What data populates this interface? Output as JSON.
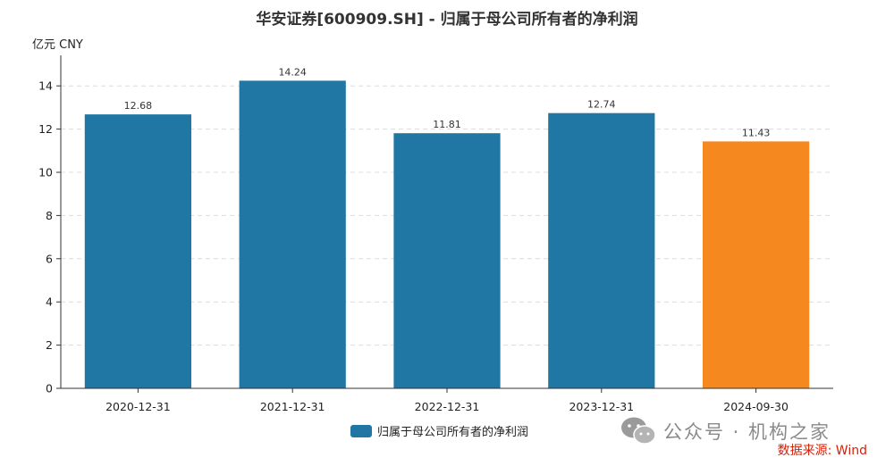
{
  "chart_data": {
    "type": "bar",
    "title": "华安证券[600909.SH] - 归属于母公司所有者的净利润",
    "unit_label": "亿元  CNY",
    "categories": [
      "2020-12-31",
      "2021-12-31",
      "2022-12-31",
      "2023-12-31",
      "2024-09-30"
    ],
    "series": [
      {
        "name": "归属于母公司所有者的净利润",
        "values": [
          12.68,
          14.24,
          11.81,
          12.74,
          11.43
        ]
      }
    ],
    "value_labels": [
      "12.68",
      "14.24",
      "11.81",
      "12.74",
      "11.43"
    ],
    "ylim": [
      0,
      15
    ],
    "yticks": [
      0,
      2,
      4,
      6,
      8,
      10,
      12,
      14
    ],
    "colors": {
      "bar": "#2177a4",
      "highlight": "#f5891f"
    },
    "highlight_index": 4,
    "grid": true,
    "legend_position": "bottom-center"
  },
  "watermark": {
    "text": "公众号 · 机构之家",
    "icon": "wechat-icon"
  },
  "source_note": "数据来源: Wind"
}
